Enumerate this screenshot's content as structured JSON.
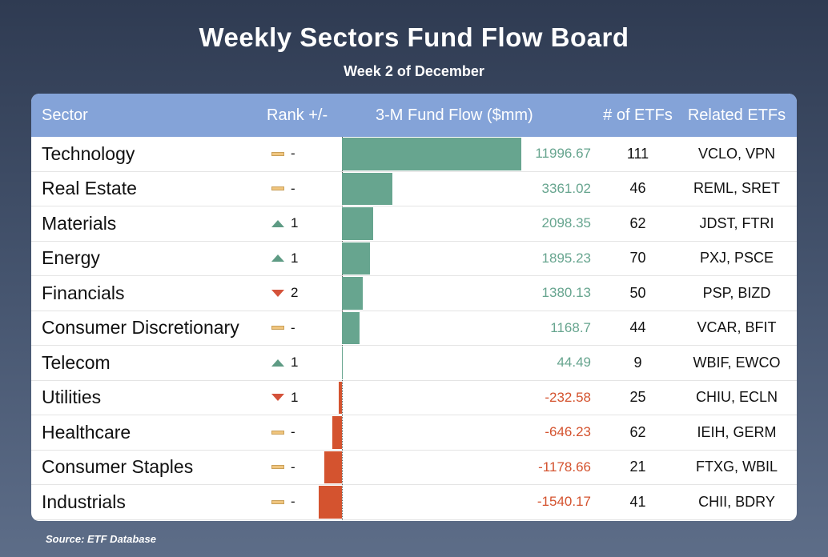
{
  "chart_data": {
    "type": "table",
    "title": "Weekly Sectors Fund Flow Board",
    "subtitle": "Week 2 of December",
    "source": "Source: ETF Database",
    "columns": [
      "Sector",
      "Rank +/-",
      "3-M Fund Flow ($mm)",
      "# of ETFs",
      "Related ETFs"
    ],
    "colors": {
      "positive": "#67a58f",
      "negative": "#d4532f",
      "header": "#84a3d8"
    },
    "rows": [
      {
        "sector": "Technology",
        "rank_dir": "flat",
        "rank": "-",
        "flow": 11996.67,
        "flow_label": "11996.67",
        "etfs": "111",
        "related": "VCLO, VPN"
      },
      {
        "sector": "Real Estate",
        "rank_dir": "flat",
        "rank": "-",
        "flow": 3361.02,
        "flow_label": "3361.02",
        "etfs": "46",
        "related": "REML, SRET"
      },
      {
        "sector": "Materials",
        "rank_dir": "up",
        "rank": "1",
        "flow": 2098.35,
        "flow_label": "2098.35",
        "etfs": "62",
        "related": "JDST, FTRI"
      },
      {
        "sector": "Energy",
        "rank_dir": "up",
        "rank": "1",
        "flow": 1895.23,
        "flow_label": "1895.23",
        "etfs": "70",
        "related": "PXJ, PSCE"
      },
      {
        "sector": "Financials",
        "rank_dir": "down",
        "rank": "2",
        "flow": 1380.13,
        "flow_label": "1380.13",
        "etfs": "50",
        "related": "PSP, BIZD"
      },
      {
        "sector": "Consumer Discretionary",
        "rank_dir": "flat",
        "rank": "-",
        "flow": 1168.7,
        "flow_label": "1168.7",
        "etfs": "44",
        "related": "VCAR, BFIT"
      },
      {
        "sector": "Telecom",
        "rank_dir": "up",
        "rank": "1",
        "flow": 44.49,
        "flow_label": "44.49",
        "etfs": "9",
        "related": "WBIF, EWCO"
      },
      {
        "sector": "Utilities",
        "rank_dir": "down",
        "rank": "1",
        "flow": -232.58,
        "flow_label": "-232.58",
        "etfs": "25",
        "related": "CHIU, ECLN"
      },
      {
        "sector": "Healthcare",
        "rank_dir": "flat",
        "rank": "-",
        "flow": -646.23,
        "flow_label": "-646.23",
        "etfs": "62",
        "related": "IEIH, GERM"
      },
      {
        "sector": "Consumer Staples",
        "rank_dir": "flat",
        "rank": "-",
        "flow": -1178.66,
        "flow_label": "-1178.66",
        "etfs": "21",
        "related": "FTXG, WBIL"
      },
      {
        "sector": "Industrials",
        "rank_dir": "flat",
        "rank": "-",
        "flow": -1540.17,
        "flow_label": "-1540.17",
        "etfs": "41",
        "related": "CHII, BDRY"
      }
    ]
  }
}
